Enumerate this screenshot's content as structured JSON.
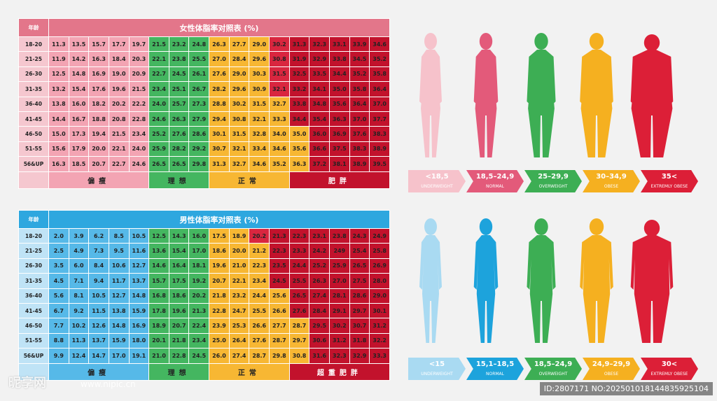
{
  "female_table": {
    "age_header": "年龄",
    "title": "女性体脂率对照表 (%)",
    "rows": [
      {
        "age": "18-20",
        "values": [
          "11.3",
          "13.5",
          "15.7",
          "17.7",
          "19.7",
          "21.5",
          "23.2",
          "24.8",
          "26.3",
          "27.7",
          "29.0",
          "30.2",
          "31.3",
          "32.3",
          "33.1",
          "33.9",
          "34.6"
        ]
      },
      {
        "age": "21-25",
        "values": [
          "11.9",
          "14.2",
          "16.3",
          "18.4",
          "20.3",
          "22.1",
          "23.8",
          "25.5",
          "27.0",
          "28.4",
          "29.6",
          "30.8",
          "31.9",
          "32.9",
          "33.8",
          "34.5",
          "35.2"
        ]
      },
      {
        "age": "26-30",
        "values": [
          "12.5",
          "14.8",
          "16.9",
          "19.0",
          "20.9",
          "22.7",
          "24.5",
          "26.1",
          "27.6",
          "29.0",
          "30.3",
          "31.5",
          "32.5",
          "33.5",
          "34.4",
          "35.2",
          "35.8"
        ]
      },
      {
        "age": "31-35",
        "values": [
          "13.2",
          "15.4",
          "17.6",
          "19.6",
          "21.5",
          "23.4",
          "25.1",
          "26.7",
          "28.2",
          "29.6",
          "30.9",
          "32.1",
          "33.2",
          "34.1",
          "35.0",
          "35.8",
          "36.4"
        ]
      },
      {
        "age": "36-40",
        "values": [
          "13.8",
          "16.0",
          "18.2",
          "20.2",
          "22.2",
          "24.0",
          "25.7",
          "27.3",
          "28.8",
          "30.2",
          "31.5",
          "32.7",
          "33.8",
          "34.8",
          "35.6",
          "36.4",
          "37.0"
        ]
      },
      {
        "age": "41-45",
        "values": [
          "14.4",
          "16.7",
          "18.8",
          "20.8",
          "22.8",
          "24.6",
          "26.3",
          "27.9",
          "29.4",
          "30.8",
          "32.1",
          "33.3",
          "34.4",
          "35.4",
          "36.3",
          "37.0",
          "37.7"
        ]
      },
      {
        "age": "46-50",
        "values": [
          "15.0",
          "17.3",
          "19.4",
          "21.5",
          "23.4",
          "25.2",
          "27.6",
          "28.6",
          "30.1",
          "31.5",
          "32.8",
          "34.0",
          "35.0",
          "36.0",
          "36.9",
          "37.6",
          "38.3"
        ]
      },
      {
        "age": "51-55",
        "values": [
          "15.6",
          "17.9",
          "20.0",
          "22.1",
          "24.0",
          "25.9",
          "28.2",
          "29.2",
          "30.7",
          "32.1",
          "33.4",
          "34.6",
          "35.6",
          "36.6",
          "37.5",
          "38.3",
          "38.9"
        ]
      },
      {
        "age": "56&UP",
        "values": [
          "16.3",
          "18.5",
          "20.7",
          "22.7",
          "24.6",
          "26.5",
          "26.5",
          "29.8",
          "31.3",
          "32.7",
          "34.6",
          "35.2",
          "36.3",
          "37.2",
          "38.1",
          "38.9",
          "39.5"
        ]
      }
    ],
    "categories": [
      "偏瘦",
      "理想",
      "正常",
      "肥胖"
    ]
  },
  "male_table": {
    "age_header": "年龄",
    "title": "男性体脂率对照表 (%)",
    "rows": [
      {
        "age": "18-20",
        "values": [
          "2.0",
          "3.9",
          "6.2",
          "8.5",
          "10.5",
          "12.5",
          "14.3",
          "16.0",
          "17.5",
          "18.9",
          "20.2",
          "21.3",
          "22.3",
          "23.1",
          "23.8",
          "24.3",
          "24.9"
        ]
      },
      {
        "age": "21-25",
        "values": [
          "2.5",
          "4.9",
          "7.3",
          "9.5",
          "11.6",
          "13.6",
          "15.4",
          "17.0",
          "18.6",
          "20.0",
          "21.2",
          "22.3",
          "23.3",
          "24.2",
          "249",
          "25.4",
          "25.8"
        ]
      },
      {
        "age": "26-30",
        "values": [
          "3.5",
          "6.0",
          "8.4",
          "10.6",
          "12.7",
          "14.6",
          "16.4",
          "18.1",
          "19.6",
          "21.0",
          "22.3",
          "23.5",
          "24.4",
          "25.2",
          "25.9",
          "26.5",
          "26.9"
        ]
      },
      {
        "age": "31-35",
        "values": [
          "4.5",
          "7.1",
          "9.4",
          "11.7",
          "13.7",
          "15.7",
          "17.5",
          "19.2",
          "20.7",
          "22.1",
          "23.4",
          "24.5",
          "25.5",
          "26.3",
          "27.0",
          "27.5",
          "28.0"
        ]
      },
      {
        "age": "36-40",
        "values": [
          "5.6",
          "8.1",
          "10.5",
          "12.7",
          "14.8",
          "16.8",
          "18.6",
          "20.2",
          "21.8",
          "23.2",
          "24.4",
          "25.6",
          "26.5",
          "27.4",
          "28.1",
          "28.6",
          "29.0"
        ]
      },
      {
        "age": "41-45",
        "values": [
          "6.7",
          "9.2",
          "11.5",
          "13.8",
          "15.9",
          "17.8",
          "19.6",
          "21.3",
          "22.8",
          "24.7",
          "25.5",
          "26.6",
          "27.6",
          "28.4",
          "29.1",
          "29.7",
          "30.1"
        ]
      },
      {
        "age": "46-50",
        "values": [
          "7.7",
          "10.2",
          "12.6",
          "14.8",
          "16.9",
          "18.9",
          "20.7",
          "22.4",
          "23.9",
          "25.3",
          "26.6",
          "27.7",
          "28.7",
          "29.5",
          "30.2",
          "30.7",
          "31.2"
        ]
      },
      {
        "age": "51-55",
        "values": [
          "8.8",
          "11.3",
          "13.7",
          "15.9",
          "18.0",
          "20.1",
          "21.8",
          "23.4",
          "25.0",
          "26.4",
          "27.6",
          "28.7",
          "29.7",
          "30.6",
          "31.2",
          "31.8",
          "32.2"
        ]
      },
      {
        "age": "56&UP",
        "values": [
          "9.9",
          "12.4",
          "14.7",
          "17.0",
          "19.1",
          "21.0",
          "22.8",
          "24.5",
          "26.0",
          "27.4",
          "28.7",
          "29.8",
          "30.8",
          "31.6",
          "32.3",
          "32.9",
          "33.3"
        ]
      }
    ],
    "categories": [
      "偏瘦",
      "理想",
      "正常",
      "超重肥胖"
    ]
  },
  "female_scale": [
    {
      "value": "<18,5",
      "label": "UNDERWEIGHT",
      "color": "#f6c2cb"
    },
    {
      "value": "18,5–24,9",
      "label": "NORMAL",
      "color": "#e35a7a"
    },
    {
      "value": "25–29,9",
      "label": "OVERWEIGHT",
      "color": "#3dae54"
    },
    {
      "value": "30–34,9",
      "label": "OBESE",
      "color": "#f5b020"
    },
    {
      "value": "35<",
      "label": "EXTREMLY OBESE",
      "color": "#dc1f37"
    }
  ],
  "male_scale": [
    {
      "value": "<15",
      "label": "UNDERWEIGHT",
      "color": "#a9daf2"
    },
    {
      "value": "15,1–18,5",
      "label": "NORMAL",
      "color": "#1da3dc"
    },
    {
      "value": "18,5–24,9",
      "label": "OVERWEIGHT",
      "color": "#3dae54"
    },
    {
      "value": "24,9–29,9",
      "label": "OBESE",
      "color": "#f5b020"
    },
    {
      "value": "30<",
      "label": "EXTREMLY OBESE",
      "color": "#dc1f37"
    }
  ],
  "colors": {
    "female_header": "#e3768a",
    "male_header": "#2ea7df",
    "female_age_cell": "#f5c7cf",
    "male_age_cell": "#bfe3f6",
    "female_thin": "#f3a4b3",
    "male_thin": "#56b9e8",
    "ideal": "#44b660",
    "normal": "#f7b733",
    "obese_light": "#d9263f",
    "obese_dark": "#c2122c"
  },
  "watermark": {
    "logo_text": "昵享网",
    "url": "www.nipic.cn",
    "id_text": "ID:2807171 NO:20250101814483592510​4"
  }
}
